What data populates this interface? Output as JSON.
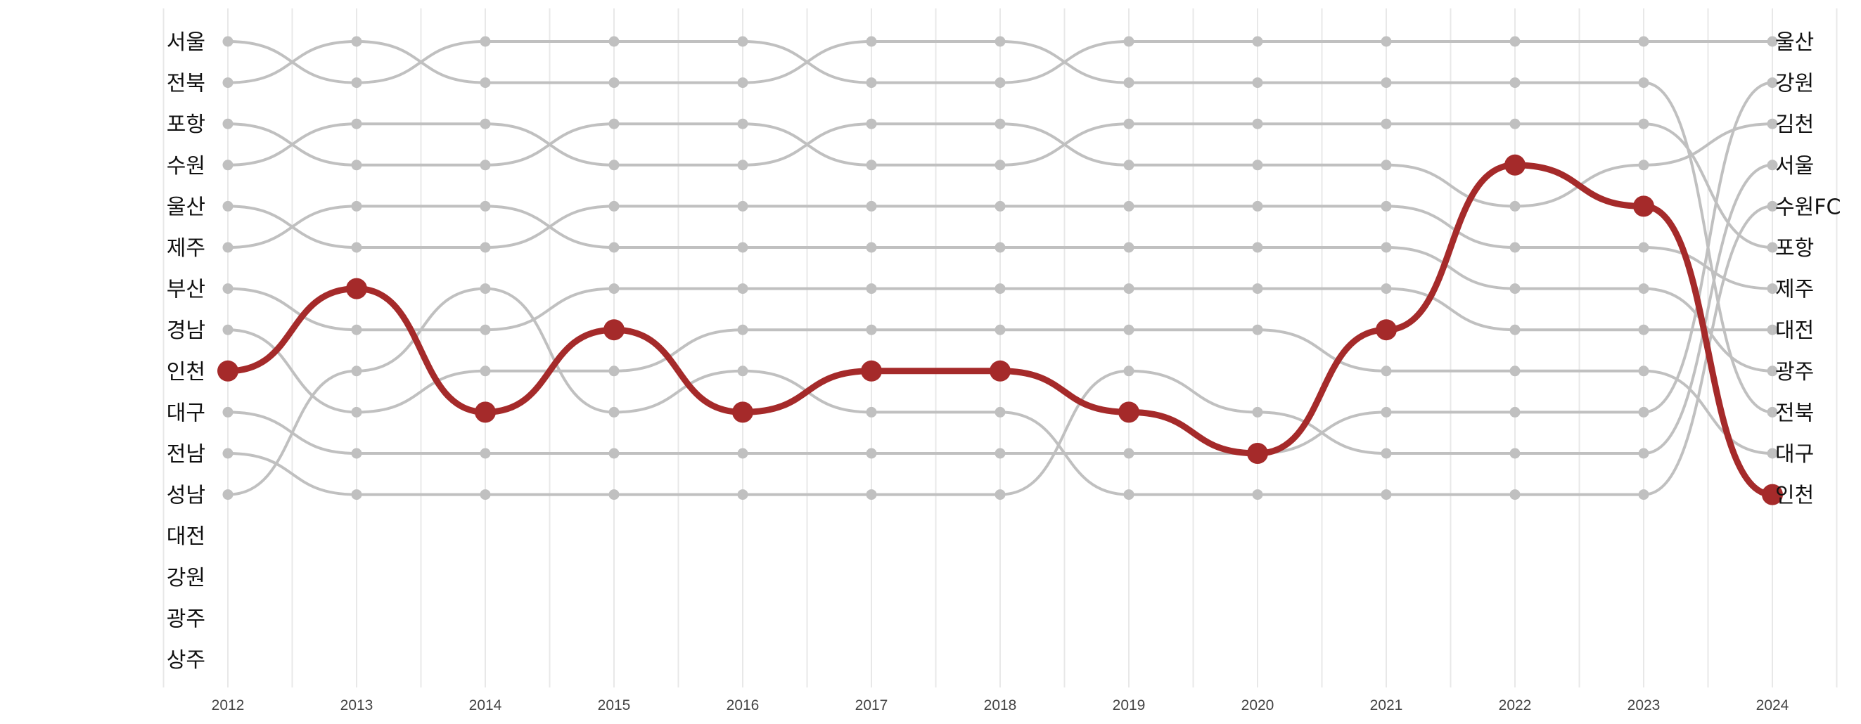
{
  "chart_data": {
    "type": "line",
    "x": [
      2012,
      2013,
      2014,
      2015,
      2016,
      2017,
      2018,
      2019,
      2020,
      2021,
      2022,
      2023,
      2024
    ],
    "left_labels": [
      "서울",
      "전북",
      "포항",
      "수원",
      "울산",
      "제주",
      "부산",
      "경남",
      "인천",
      "대구",
      "전남",
      "성남",
      "대전",
      "강원",
      "광주",
      "상주"
    ],
    "right_labels": [
      "울산",
      "강원",
      "김천",
      "서울",
      "수원FC",
      "포항",
      "제주",
      "대전",
      "광주",
      "전북",
      "대구",
      "인천"
    ],
    "highlight": {
      "color": "#a52a2a",
      "ranks": [
        9,
        7,
        10,
        8,
        10,
        9,
        9,
        10,
        11,
        8,
        4,
        5,
        12
      ]
    },
    "background_color": "#c0c0c0",
    "background_series": [
      [
        1,
        2,
        1,
        1,
        1,
        2,
        2,
        1,
        1,
        1,
        1,
        1,
        1
      ],
      [
        2,
        1,
        2,
        2,
        2,
        1,
        1,
        2,
        2,
        2,
        2,
        2,
        10
      ],
      [
        3,
        4,
        4,
        3,
        3,
        4,
        4,
        3,
        3,
        3,
        3,
        3,
        6
      ],
      [
        4,
        3,
        3,
        4,
        4,
        3,
        3,
        4,
        4,
        4,
        5,
        4,
        3
      ],
      [
        5,
        6,
        6,
        5,
        5,
        5,
        5,
        5,
        5,
        5,
        6,
        6,
        7
      ],
      [
        6,
        5,
        5,
        6,
        6,
        6,
        6,
        6,
        6,
        6,
        7,
        7,
        9
      ],
      [
        7,
        8,
        8,
        7,
        7,
        7,
        7,
        7,
        7,
        7,
        8,
        8,
        8
      ],
      [
        8,
        10,
        9,
        9,
        8,
        8,
        8,
        8,
        8,
        9,
        9,
        9,
        11
      ],
      [
        10,
        11,
        11,
        11,
        11,
        11,
        11,
        11,
        11,
        10,
        10,
        10,
        2
      ],
      [
        11,
        12,
        12,
        12,
        12,
        12,
        12,
        9,
        10,
        11,
        11,
        11,
        4
      ],
      [
        12,
        9,
        7,
        10,
        9,
        10,
        10,
        12,
        12,
        12,
        12,
        12,
        5
      ]
    ]
  }
}
